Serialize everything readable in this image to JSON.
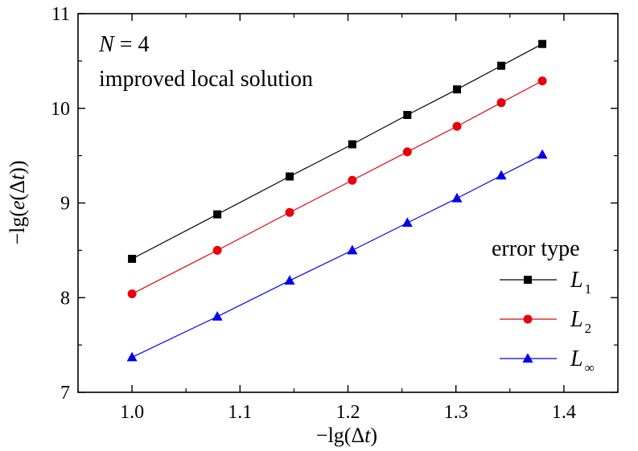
{
  "chart_data": {
    "type": "line",
    "x": [
      1.0,
      1.079,
      1.146,
      1.204,
      1.255,
      1.301,
      1.342,
      1.38
    ],
    "series": [
      {
        "name": "L1",
        "color": "#000000",
        "marker": "square",
        "values": [
          8.41,
          8.88,
          9.28,
          9.62,
          9.93,
          10.2,
          10.45,
          10.68
        ]
      },
      {
        "name": "L2",
        "color": "#e8000b",
        "marker": "circle",
        "values": [
          8.04,
          8.5,
          8.9,
          9.24,
          9.54,
          9.81,
          10.06,
          10.29
        ]
      },
      {
        "name": "L∞",
        "color": "#0000ee",
        "marker": "triangle",
        "values": [
          7.37,
          7.8,
          8.18,
          8.5,
          8.79,
          9.05,
          9.29,
          9.51
        ]
      }
    ],
    "xlim": [
      0.95,
      1.45
    ],
    "ylim": [
      7,
      11
    ],
    "x_ticks": [
      "1.0",
      "1.1",
      "1.2",
      "1.3",
      "1.4"
    ],
    "x_tick_values": [
      1.0,
      1.1,
      1.2,
      1.3,
      1.4
    ],
    "y_ticks": [
      "7",
      "8",
      "9",
      "10",
      "11"
    ],
    "y_tick_values": [
      7,
      8,
      9,
      10,
      11
    ],
    "xlabel": {
      "prefix": "−lg(Δ",
      "var": "t",
      "suffix": ")"
    },
    "ylabel": {
      "prefix": "−lg(",
      "var": "e",
      "mid": "(Δ",
      "var2": "t",
      "suffix": "))"
    },
    "annotations": {
      "line1_var": "N",
      "line1_rest": " = 4",
      "line2": "improved local solution"
    },
    "legend": {
      "title": "error type",
      "placement": "bottom-right",
      "entries": [
        {
          "main": "L",
          "sub": "1"
        },
        {
          "main": "L",
          "sub": "2"
        },
        {
          "main": "L",
          "sub": "∞"
        }
      ]
    },
    "grid": false
  }
}
